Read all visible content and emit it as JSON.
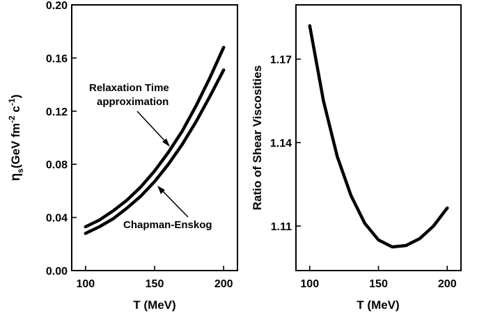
{
  "chart_data": [
    {
      "type": "line",
      "xlabel": "T (MeV)",
      "ylabel": {
        "eta": "η",
        "sub_s": "s",
        "open": "(GeV fm",
        "sup_m2": "-2",
        "c": " c",
        "sup_m1": "-1",
        "close": ")"
      },
      "xlim": [
        90,
        210
      ],
      "ylim": [
        0.0,
        0.2
      ],
      "x_ticks": [
        100,
        150,
        200
      ],
      "y_ticks": [
        "0.00",
        "0.04",
        "0.08",
        "0.12",
        "0.16",
        "0.20"
      ],
      "grid": false,
      "series": [
        {
          "name": "Relaxation Time approximation",
          "x": [
            100,
            110,
            120,
            130,
            140,
            150,
            160,
            170,
            180,
            190,
            200
          ],
          "values": [
            0.033,
            0.038,
            0.045,
            0.053,
            0.063,
            0.075,
            0.089,
            0.105,
            0.124,
            0.145,
            0.168
          ]
        },
        {
          "name": "Chapman-Enskog",
          "x": [
            100,
            110,
            120,
            130,
            140,
            150,
            160,
            170,
            180,
            190,
            200
          ],
          "values": [
            0.028,
            0.033,
            0.039,
            0.047,
            0.056,
            0.067,
            0.08,
            0.095,
            0.112,
            0.131,
            0.151
          ]
        }
      ],
      "annotations": {
        "rta_line1": "Relaxation Time",
        "rta_line2": "approximation",
        "ce": "Chapman-Enskog"
      }
    },
    {
      "type": "line",
      "xlabel": "T (MeV)",
      "ylabel": "Ratio of Shear Viscosities",
      "xlim": [
        90,
        210
      ],
      "ylim": [
        1.094,
        1.1895
      ],
      "x_ticks": [
        100,
        150,
        200
      ],
      "y_ticks": [
        "1.11",
        "1.14",
        "1.17"
      ],
      "grid": false,
      "series": [
        {
          "name": "",
          "x": [
            100,
            110,
            120,
            130,
            140,
            150,
            160,
            170,
            180,
            190,
            200
          ],
          "values": [
            1.182,
            1.155,
            1.135,
            1.121,
            1.111,
            1.105,
            1.1025,
            1.103,
            1.1055,
            1.11,
            1.1165
          ]
        }
      ]
    }
  ]
}
